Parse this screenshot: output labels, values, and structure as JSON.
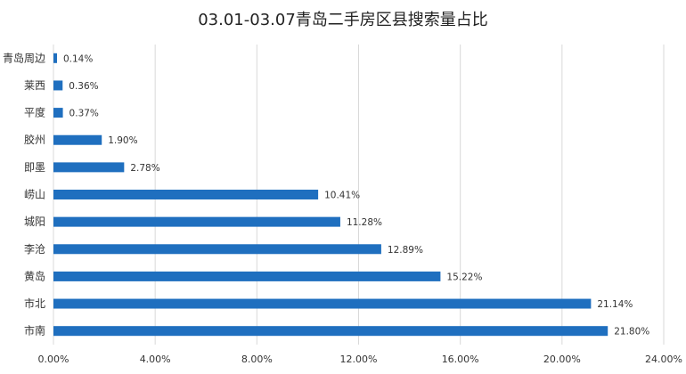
{
  "chart_data": {
    "type": "bar",
    "orientation": "horizontal",
    "title": "03.01-03.07青岛二手房区县搜索量占比",
    "xlabel": "",
    "ylabel": "",
    "categories": [
      "青岛周边",
      "莱西",
      "平度",
      "胶州",
      "即墨",
      "崂山",
      "城阳",
      "李沧",
      "黄岛",
      "市北",
      "市南"
    ],
    "values": [
      0.14,
      0.36,
      0.37,
      1.9,
      2.78,
      10.41,
      11.28,
      12.89,
      15.22,
      21.14,
      21.8
    ],
    "value_labels": [
      "0.14%",
      "0.36%",
      "0.37%",
      "1.90%",
      "2.78%",
      "10.41%",
      "11.28%",
      "12.89%",
      "15.22%",
      "21.14%",
      "21.80%"
    ],
    "xlim": [
      0,
      24
    ],
    "x_ticks": [
      0,
      4,
      8,
      12,
      16,
      20,
      24
    ],
    "x_tick_labels": [
      "0.00%",
      "4.00%",
      "8.00%",
      "12.00%",
      "16.00%",
      "20.00%",
      "24.00%"
    ],
    "grid": "vertical",
    "legend": "none",
    "bar_color": "#1F6FBF",
    "grid_color": "#D9D9D9"
  }
}
